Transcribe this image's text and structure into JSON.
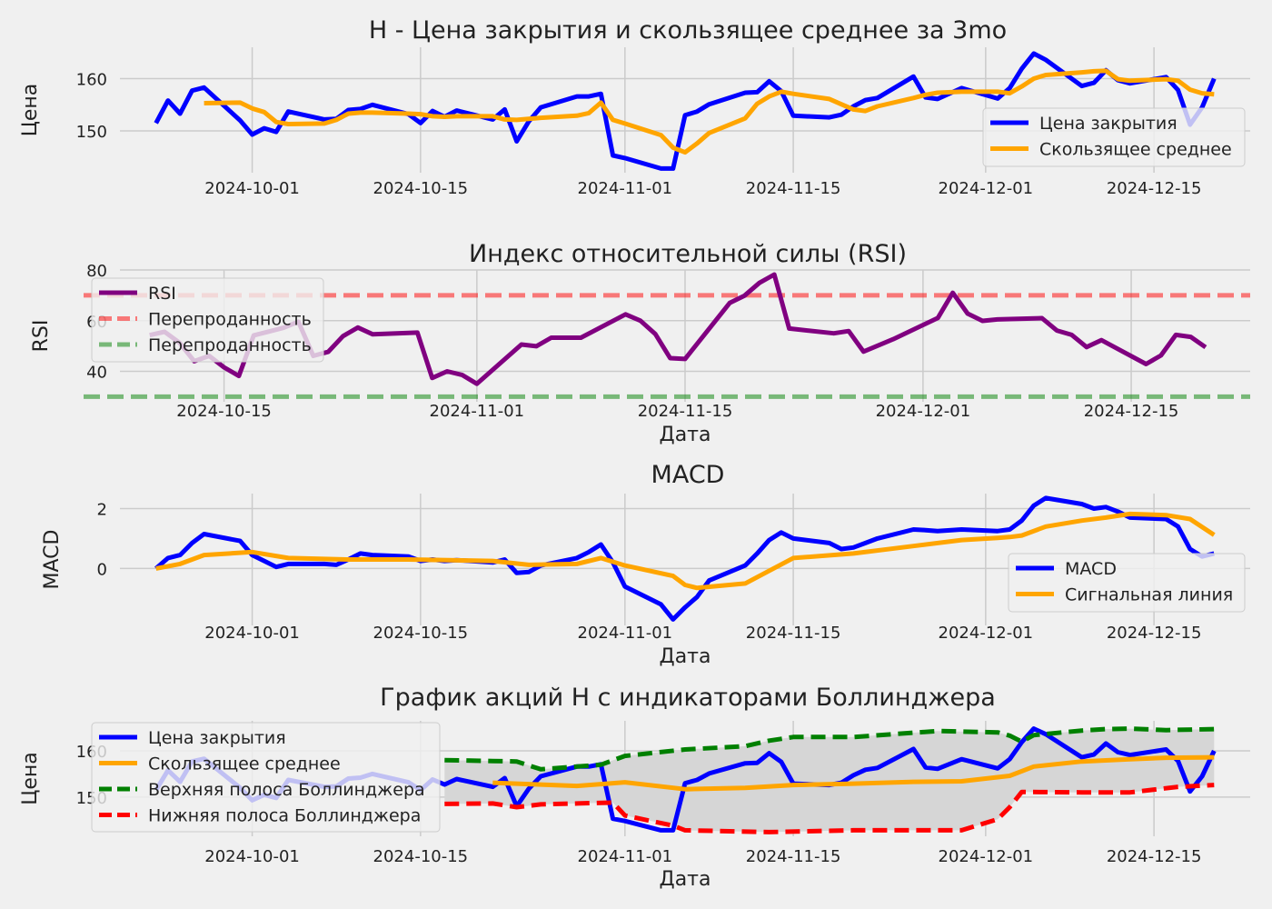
{
  "chart_data": [
    {
      "type": "line",
      "title": "H - Цена закрытия и скользящее среднее за 3mo",
      "xlabel": "",
      "ylabel": "Цена",
      "x_ticks": [
        "2024-10-01",
        "2024-10-15",
        "2024-11-01",
        "2024-11-15",
        "2024-12-01",
        "2024-12-15"
      ],
      "y_ticks": [
        150,
        160
      ],
      "legend": "lower-right",
      "series": [
        {
          "name": "Цена закрытия",
          "color": "#0000ff",
          "x": [
            "2024-09-23",
            "2024-09-24",
            "2024-09-25",
            "2024-09-26",
            "2024-09-27",
            "2024-09-30",
            "2024-10-01",
            "2024-10-02",
            "2024-10-03",
            "2024-10-04",
            "2024-10-07",
            "2024-10-08",
            "2024-10-09",
            "2024-10-10",
            "2024-10-11",
            "2024-10-14",
            "2024-10-15",
            "2024-10-16",
            "2024-10-17",
            "2024-10-18",
            "2024-10-21",
            "2024-10-22",
            "2024-10-23",
            "2024-10-24",
            "2024-10-25",
            "2024-10-28",
            "2024-10-29",
            "2024-10-30",
            "2024-10-31",
            "2024-11-01",
            "2024-11-04",
            "2024-11-05",
            "2024-11-06",
            "2024-11-07",
            "2024-11-08",
            "2024-11-11",
            "2024-11-12",
            "2024-11-13",
            "2024-11-14",
            "2024-11-15",
            "2024-11-18",
            "2024-11-19",
            "2024-11-20",
            "2024-11-21",
            "2024-11-22",
            "2024-11-25",
            "2024-11-26",
            "2024-11-27",
            "2024-11-29",
            "2024-12-02",
            "2024-12-03",
            "2024-12-04",
            "2024-12-05",
            "2024-12-06",
            "2024-12-09",
            "2024-12-10",
            "2024-12-11",
            "2024-12-12",
            "2024-12-13",
            "2024-12-16",
            "2024-12-17",
            "2024-12-18",
            "2024-12-19",
            "2024-12-20"
          ],
          "values": [
            151.5,
            155.8,
            153.3,
            157.7,
            158.3,
            152,
            149.3,
            150.5,
            149.8,
            153.7,
            152.2,
            152.3,
            154,
            154.2,
            155,
            153.2,
            151.5,
            153.8,
            152.7,
            153.9,
            152.2,
            154.1,
            148,
            151.8,
            154.5,
            156.6,
            156.6,
            157.1,
            145.3,
            144.8,
            142.8,
            142.8,
            153,
            153.7,
            155.1,
            157.3,
            157.4,
            159.5,
            157.6,
            152.9,
            152.6,
            153.1,
            154.7,
            155.9,
            156.3,
            160.4,
            156.4,
            156.1,
            158.2,
            156.2,
            158.2,
            161.9,
            164.8,
            163.6,
            158.6,
            159.2,
            161.6,
            159.7,
            159.1,
            160.3,
            157.8,
            151.2,
            154.5,
            160
          ]
        },
        {
          "name": "Скользящее среднее",
          "color": "#ffa500",
          "x": [
            "2024-09-27",
            "2024-09-30",
            "2024-10-01",
            "2024-10-02",
            "2024-10-03",
            "2024-10-04",
            "2024-10-07",
            "2024-10-08",
            "2024-10-09",
            "2024-10-10",
            "2024-10-11",
            "2024-10-14",
            "2024-10-15",
            "2024-10-16",
            "2024-10-17",
            "2024-10-18",
            "2024-10-21",
            "2024-10-22",
            "2024-10-23",
            "2024-10-24",
            "2024-10-25",
            "2024-10-28",
            "2024-10-29",
            "2024-10-30",
            "2024-10-31",
            "2024-11-01",
            "2024-11-04",
            "2024-11-05",
            "2024-11-06",
            "2024-11-07",
            "2024-11-08",
            "2024-11-11",
            "2024-11-12",
            "2024-11-13",
            "2024-11-14",
            "2024-11-15",
            "2024-11-18",
            "2024-11-19",
            "2024-11-20",
            "2024-11-21",
            "2024-11-22",
            "2024-11-25",
            "2024-11-26",
            "2024-11-27",
            "2024-11-29",
            "2024-12-02",
            "2024-12-03",
            "2024-12-04",
            "2024-12-05",
            "2024-12-06",
            "2024-12-09",
            "2024-12-10",
            "2024-12-11",
            "2024-12-12",
            "2024-12-13",
            "2024-12-16",
            "2024-12-17",
            "2024-12-18",
            "2024-12-19",
            "2024-12-20"
          ],
          "values": [
            155.3,
            155.4,
            154.3,
            153.6,
            151.7,
            151.3,
            151.4,
            152.1,
            153.3,
            153.5,
            153.5,
            153.3,
            153.2,
            152.8,
            152.7,
            152.8,
            152.8,
            152.2,
            152.1,
            152.3,
            152.5,
            152.9,
            153.4,
            155.4,
            152.1,
            151.4,
            149.2,
            146.8,
            145.9,
            147.6,
            149.6,
            152.4,
            155.2,
            156.6,
            157.5,
            157.1,
            156.1,
            155.1,
            154.1,
            153.8,
            154.7,
            156.3,
            156.9,
            157.3,
            157.5,
            157.5,
            157.2,
            158.5,
            160,
            160.7,
            161.2,
            161.4,
            161.5,
            159.9,
            159.6,
            159.9,
            159.6,
            157.9,
            157.2,
            157.0
          ]
        }
      ]
    },
    {
      "type": "line",
      "title": "Индекс относительной силы (RSI)",
      "xlabel": "Дата",
      "ylabel": "RSI",
      "x_ticks": [
        "2024-10-15",
        "2024-11-01",
        "2024-11-15",
        "2024-12-01",
        "2024-12-15"
      ],
      "y_ticks": [
        40,
        60,
        80
      ],
      "legend": "upper-left",
      "series": [
        {
          "name": "RSI",
          "color": "#800080",
          "x": [
            "2024-10-10",
            "2024-10-11",
            "2024-10-12",
            "2024-10-13",
            "2024-10-14",
            "2024-10-15",
            "2024-10-16",
            "2024-10-17",
            "2024-10-18",
            "2024-10-19",
            "2024-10-20",
            "2024-10-21",
            "2024-10-22",
            "2024-10-23",
            "2024-10-24",
            "2024-10-25",
            "2024-10-28",
            "2024-10-29",
            "2024-10-30",
            "2024-10-31",
            "2024-11-01",
            "2024-11-04",
            "2024-11-05",
            "2024-11-06",
            "2024-11-07",
            "2024-11-08",
            "2024-11-11",
            "2024-11-12",
            "2024-11-13",
            "2024-11-14",
            "2024-11-15",
            "2024-11-18",
            "2024-11-19",
            "2024-11-20",
            "2024-11-21",
            "2024-11-22",
            "2024-11-25",
            "2024-11-26",
            "2024-11-27",
            "2024-11-29",
            "2024-12-02",
            "2024-12-03",
            "2024-12-04",
            "2024-12-05",
            "2024-12-06",
            "2024-12-09",
            "2024-12-10",
            "2024-12-11",
            "2024-12-12",
            "2024-12-13",
            "2024-12-16",
            "2024-12-17",
            "2024-12-18",
            "2024-12-19",
            "2024-12-20"
          ],
          "values": [
            54.3,
            55.6,
            51.3,
            44,
            46.1,
            41.6,
            38.2,
            54.2,
            55.7,
            57.2,
            59.6,
            46.1,
            47.7,
            53.9,
            57.3,
            54.6,
            55.3,
            37.4,
            40,
            38.6,
            35.1,
            50.6,
            49.9,
            53.3,
            53.3,
            53.3,
            62.5,
            60,
            54.7,
            45.2,
            44.9,
            67,
            69.9,
            74.9,
            78.2,
            56.9,
            55,
            55.9,
            47.8,
            52.7,
            61.1,
            71,
            62.8,
            59.9,
            60.5,
            61,
            56.1,
            54.4,
            49.6,
            52.3,
            42.9,
            46.3,
            54.4,
            53.6,
            49.5
          ]
        },
        {
          "name": "Перепроданность",
          "color": "#ff0000",
          "values": [
            70,
            70
          ]
        },
        {
          "name": "Перепроданность",
          "color": "#008000",
          "values": [
            30,
            30
          ]
        }
      ]
    },
    {
      "type": "line",
      "title": "MACD",
      "xlabel": "Дата",
      "ylabel": "MACD",
      "x_ticks": [
        "2024-10-01",
        "2024-10-15",
        "2024-11-01",
        "2024-11-15",
        "2024-12-01",
        "2024-12-15"
      ],
      "y_ticks": [
        0,
        2
      ],
      "legend": "lower-right",
      "series": [
        {
          "name": "MACD",
          "color": "#0000ff",
          "x": [
            "2024-09-23",
            "2024-09-24",
            "2024-09-25",
            "2024-09-26",
            "2024-09-27",
            "2024-09-30",
            "2024-10-01",
            "2024-10-02",
            "2024-10-03",
            "2024-10-04",
            "2024-10-07",
            "2024-10-08",
            "2024-10-09",
            "2024-10-10",
            "2024-10-11",
            "2024-10-14",
            "2024-10-15",
            "2024-10-16",
            "2024-10-17",
            "2024-10-18",
            "2024-10-21",
            "2024-10-22",
            "2024-10-23",
            "2024-10-24",
            "2024-10-25",
            "2024-10-28",
            "2024-10-29",
            "2024-10-30",
            "2024-10-31",
            "2024-11-01",
            "2024-11-04",
            "2024-11-05",
            "2024-11-06",
            "2024-11-07",
            "2024-11-08",
            "2024-11-11",
            "2024-11-12",
            "2024-11-13",
            "2024-11-14",
            "2024-11-15",
            "2024-11-18",
            "2024-11-19",
            "2024-11-20",
            "2024-11-21",
            "2024-11-22",
            "2024-11-25",
            "2024-11-26",
            "2024-11-27",
            "2024-11-29",
            "2024-12-02",
            "2024-12-03",
            "2024-12-04",
            "2024-12-05",
            "2024-12-06",
            "2024-12-09",
            "2024-12-10",
            "2024-12-11",
            "2024-12-12",
            "2024-12-13",
            "2024-12-16",
            "2024-12-17",
            "2024-12-18",
            "2024-12-19",
            "2024-12-20"
          ],
          "values": [
            0,
            0.35,
            0.45,
            0.85,
            1.15,
            0.92,
            0.45,
            0.25,
            0.05,
            0.15,
            0.15,
            0.12,
            0.3,
            0.5,
            0.45,
            0.4,
            0.25,
            0.3,
            0.25,
            0.28,
            0.2,
            0.3,
            -0.15,
            -0.12,
            0.1,
            0.35,
            0.55,
            0.8,
            0.2,
            -0.6,
            -1.2,
            -1.7,
            -1.3,
            -0.95,
            -0.4,
            0.1,
            0.5,
            0.95,
            1.2,
            1.0,
            0.85,
            0.65,
            0.7,
            0.85,
            1.0,
            1.3,
            1.28,
            1.25,
            1.3,
            1.25,
            1.3,
            1.6,
            2.1,
            2.35,
            2.15,
            2.0,
            2.05,
            1.9,
            1.7,
            1.65,
            1.4,
            0.65,
            0.4,
            0.5
          ]
        },
        {
          "name": "Сигнальная линия",
          "color": "#ffa500",
          "x": [
            "2024-09-23",
            "2024-09-25",
            "2024-09-27",
            "2024-10-01",
            "2024-10-04",
            "2024-10-09",
            "2024-10-14",
            "2024-10-21",
            "2024-10-24",
            "2024-10-28",
            "2024-10-30",
            "2024-11-01",
            "2024-11-05",
            "2024-11-06",
            "2024-11-07",
            "2024-11-11",
            "2024-11-15",
            "2024-11-20",
            "2024-11-25",
            "2024-11-29",
            "2024-12-02",
            "2024-12-03",
            "2024-12-04",
            "2024-12-06",
            "2024-12-09",
            "2024-12-11",
            "2024-12-13",
            "2024-12-16",
            "2024-12-18",
            "2024-12-20"
          ],
          "values": [
            0,
            0.15,
            0.45,
            0.55,
            0.35,
            0.3,
            0.3,
            0.25,
            0.12,
            0.15,
            0.35,
            0.1,
            -0.25,
            -0.55,
            -0.65,
            -0.5,
            0.35,
            0.5,
            0.75,
            0.95,
            1.02,
            1.05,
            1.1,
            1.4,
            1.6,
            1.7,
            1.82,
            1.78,
            1.65,
            1.12
          ]
        }
      ]
    },
    {
      "type": "line",
      "title": "График акций H с индикаторами Боллинджера",
      "xlabel": "Дата",
      "ylabel": "Цена",
      "x_ticks": [
        "2024-10-01",
        "2024-10-15",
        "2024-11-01",
        "2024-11-15",
        "2024-12-01",
        "2024-12-15"
      ],
      "y_ticks": [
        150,
        160
      ],
      "legend": "upper-left",
      "series": [
        {
          "name": "Цена закрытия",
          "color": "#0000ff",
          "same_as": "price"
        },
        {
          "name": "Скользящее среднее",
          "color": "#ffa500",
          "x": [
            "2024-10-21",
            "2024-10-28",
            "2024-11-01",
            "2024-11-06",
            "2024-11-11",
            "2024-11-15",
            "2024-11-20",
            "2024-11-25",
            "2024-11-29",
            "2024-12-03",
            "2024-12-05",
            "2024-12-09",
            "2024-12-13",
            "2024-12-16",
            "2024-12-20"
          ],
          "values": [
            153.1,
            152.4,
            153.2,
            151.7,
            152,
            152.6,
            152.9,
            153.3,
            153.4,
            154.6,
            156.6,
            157.7,
            158.2,
            158.5,
            158.6
          ]
        },
        {
          "name": "Верхняя полоса Боллинджера",
          "color": "#008000",
          "x": [
            "2024-10-17",
            "2024-10-21",
            "2024-10-23",
            "2024-10-25",
            "2024-10-30",
            "2024-11-01",
            "2024-11-06",
            "2024-11-11",
            "2024-11-13",
            "2024-11-15",
            "2024-11-20",
            "2024-11-27",
            "2024-12-02",
            "2024-12-03",
            "2024-12-04",
            "2024-12-05",
            "2024-12-09",
            "2024-12-11",
            "2024-12-13",
            "2024-12-16",
            "2024-12-20"
          ],
          "values": [
            158,
            157.8,
            157.7,
            156,
            157,
            158.9,
            160.3,
            161,
            162.2,
            163,
            163,
            164.3,
            164,
            163.3,
            162,
            163.4,
            164.4,
            164.7,
            164.8,
            164.5,
            164.7
          ]
        },
        {
          "name": "Нижняя полоса Боллинджера",
          "color": "#ff0000",
          "x": [
            "2024-10-17",
            "2024-10-21",
            "2024-10-23",
            "2024-10-25",
            "2024-10-31",
            "2024-11-01",
            "2024-11-05",
            "2024-11-06",
            "2024-11-13",
            "2024-11-20",
            "2024-11-29",
            "2024-12-02",
            "2024-12-03",
            "2024-12-04",
            "2024-12-09",
            "2024-12-13",
            "2024-12-17",
            "2024-12-20"
          ],
          "values": [
            148.5,
            148.6,
            147.8,
            148.4,
            148.8,
            146,
            143.8,
            142.8,
            142.4,
            142.8,
            142.8,
            145.2,
            147.8,
            151.1,
            151,
            151,
            152.2,
            152.6
          ]
        }
      ]
    }
  ]
}
